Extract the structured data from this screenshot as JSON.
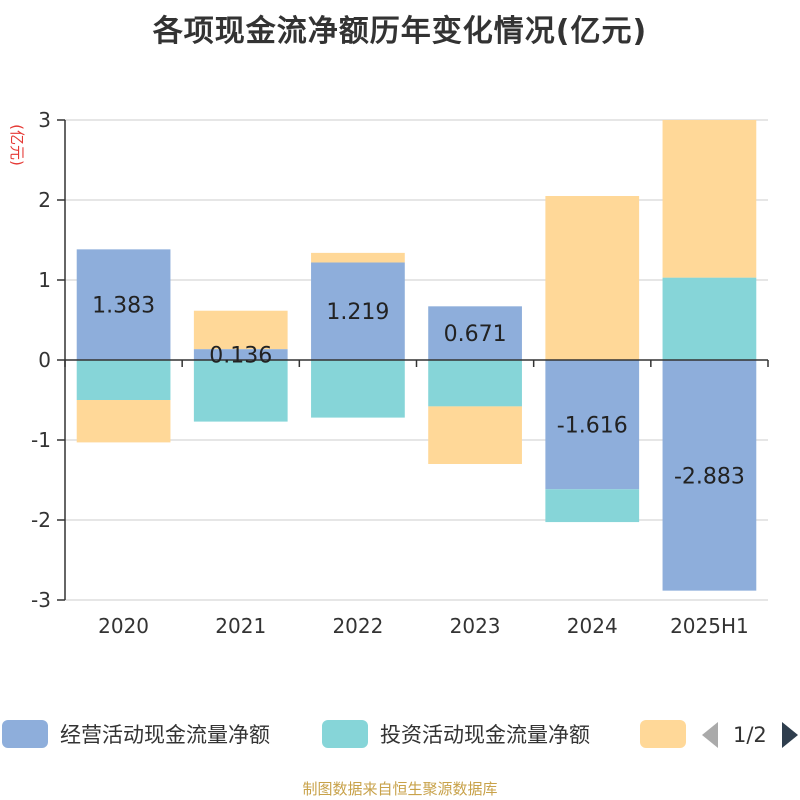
{
  "title": "各项现金流净额历年变化情况(亿元)",
  "footer": "制图数据来自恒生聚源数据库",
  "legend": {
    "items": [
      "经营活动现金流量净额",
      "投资活动现金流量净额",
      ""
    ],
    "page_indicator": "1/2"
  },
  "chart_data": {
    "type": "bar",
    "stacked": true,
    "title": "各项现金流净额历年变化情况(亿元)",
    "ylabel": "(亿元)",
    "xlabel": "",
    "ylim": [
      -3,
      3
    ],
    "yticks": [
      "3",
      "2",
      "1",
      "0",
      "-1",
      "-2",
      "-3"
    ],
    "categories": [
      "2020",
      "2021",
      "2022",
      "2023",
      "2024",
      "2025H1"
    ],
    "grid": true,
    "legend_position": "bottom",
    "series": [
      {
        "name": "经营活动现金流量净额",
        "color": "#8eaedb",
        "values": [
          1.383,
          0.136,
          1.219,
          0.671,
          -1.616,
          -2.883
        ],
        "labels": [
          "1.383",
          "0.136",
          "1.219",
          "0.671",
          "-1.616",
          "-2.883"
        ]
      },
      {
        "name": "投资活动现金流量净额",
        "color": "#86d5d8",
        "values": [
          -0.5,
          -0.77,
          -0.72,
          -0.58,
          -0.41,
          1.03
        ],
        "labels": []
      },
      {
        "name": "",
        "color": "#ffd898",
        "values": [
          -0.53,
          0.48,
          0.12,
          -0.72,
          2.05,
          1.97
        ],
        "labels": []
      }
    ]
  }
}
